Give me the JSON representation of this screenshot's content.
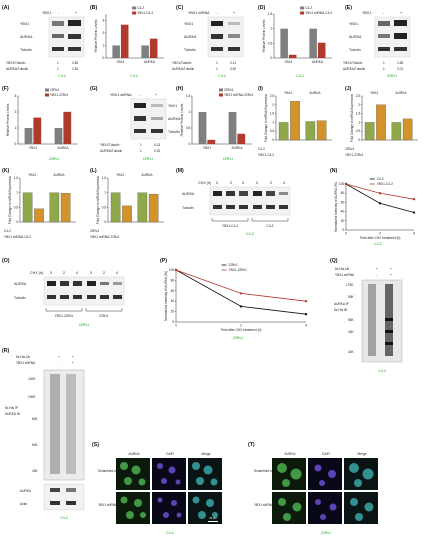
{
  "panels": {
    "A": {
      "letter": "(A)",
      "cond": [
        "YBX1",
        "-",
        "+"
      ],
      "rows": [
        "YBX1",
        "AURKA",
        "Tubulin"
      ],
      "quant": [
        [
          "YBX1/Tubulin",
          "1",
          "2.65"
        ],
        [
          "AURKA/Tubulin",
          "1",
          "1.54"
        ]
      ],
      "cell": "C4-2"
    },
    "B": {
      "letter": "(B)",
      "cell": "C4-2"
    },
    "C": {
      "letter": "(C)",
      "cond": [
        "YBX1 shRNA",
        "-",
        "+"
      ],
      "rows": [
        "YBX1",
        "AURKA",
        "Tubulin"
      ],
      "quant": [
        [
          "YBX1/Tubulin",
          "1",
          "0.11"
        ],
        [
          "AURKA/Tubulin",
          "1",
          "0.52"
        ]
      ],
      "cell": "C4-2"
    },
    "D": {
      "letter": "(D)",
      "cell": "C4-2"
    },
    "E": {
      "letter": "(E)",
      "cond": [
        "YBX1",
        "-",
        "+"
      ],
      "rows": [
        "YBX1",
        "AURKA",
        "Tubulin"
      ],
      "quant": [
        [
          "YBX1/Tubulin",
          "1",
          "1.65"
        ],
        [
          "AURKA/Tubulin",
          "1",
          "2.01"
        ]
      ],
      "cell": "22Rv1"
    },
    "F": {
      "letter": "(F)",
      "cell": "22Rv1"
    },
    "G": {
      "letter": "(G)",
      "cond": [
        "YBX1 shRNA",
        "-",
        "+"
      ],
      "rows": [
        "YBX1",
        "AURKA",
        "Tubulin"
      ],
      "quant": [
        [
          "YBX1/Tubulin",
          "1",
          "0.13"
        ],
        [
          "AURKA/Tubulin",
          "1",
          "0.32"
        ]
      ],
      "cell": "22Rv1"
    },
    "H": {
      "letter": "(H)",
      "cell": "22Rv1"
    },
    "I": {
      "letter": "(I)",
      "labels": [
        "C4-2",
        "YBX1-C4-2"
      ]
    },
    "J": {
      "letter": "(J)",
      "labels": [
        "22Rv1",
        "YBX1-22Rv1"
      ]
    },
    "K": {
      "letter": "(K)",
      "labels": [
        "C4-2",
        "YBX1 shRNA-C4-2"
      ]
    },
    "L": {
      "letter": "(L)",
      "labels": [
        "22Rv1",
        "YBX1 shRNA-22Rv1"
      ]
    },
    "M": {
      "letter": "(M)",
      "chx": "CHX (h)",
      "times": [
        "0",
        "2",
        "4",
        "0",
        "2",
        "4"
      ],
      "rows": [
        "AURKA",
        "Tubulin"
      ],
      "groups": [
        "YBX1-C4-2",
        "C4-2"
      ],
      "cell": "C4-2"
    },
    "N": {
      "letter": "(N)",
      "cell": "C4-2"
    },
    "O": {
      "letter": "(O)",
      "chx": "CHX (h)",
      "times": [
        "0",
        "2",
        "4",
        "0",
        "2",
        "4"
      ],
      "rows": [
        "AURKA",
        "Tubulin"
      ],
      "groups": [
        "YBX1-22Rv1",
        "22Rv1"
      ],
      "cell": "22Rv1"
    },
    "P": {
      "letter": "(P)",
      "cell": "22Rv1"
    },
    "Q": {
      "letter": "(Q)",
      "top": [
        "6x-His-Ub",
        "YBX1 shRNA"
      ],
      "signs": [
        [
          "+",
          "+"
        ],
        [
          "-",
          "+"
        ]
      ],
      "side": [
        "AURKA IP",
        "6x-His IB"
      ],
      "kda": [
        "175K",
        "95K",
        "55K",
        "43K",
        "34K"
      ],
      "cell": "C4-2"
    },
    "R": {
      "letter": "(R)",
      "top": [
        "6x-His-Ub",
        "YBX1 shRNA"
      ],
      "signs": [
        [
          "+",
          "+"
        ],
        [
          "-",
          "+"
        ]
      ],
      "side": [
        "6x-His IP",
        "AURKA IB"
      ],
      "kda": [
        "120K",
        "100K",
        "80K",
        "60K",
        "40K"
      ],
      "rows": [
        "AURKA",
        "Actin"
      ],
      "cell": "C4-2"
    },
    "S": {
      "letter": "(S)",
      "cols": [
        "AURKA",
        "DAPI",
        "Merge"
      ],
      "rows": [
        "Scrambled shRNA",
        "YBX1 shRNA"
      ],
      "scale": "20 μm",
      "cell": "C4-2"
    },
    "T": {
      "letter": "(T)",
      "cols": [
        "AURKA",
        "DAPI",
        "Merge"
      ],
      "rows": [
        "Scrambled shRNA",
        "YBX1 shRNA"
      ],
      "cell": "22Rv1"
    }
  },
  "chart_data": [
    {
      "panel": "B",
      "type": "bar",
      "categories": [
        "YBX1",
        "AURKA"
      ],
      "ylabel": "Relative Protein Levels",
      "ylim": [
        0,
        3.5
      ],
      "series": [
        {
          "name": "C4-2",
          "values": [
            1,
            1
          ]
        },
        {
          "name": "YBX1-C4-2",
          "values": [
            2.65,
            1.54
          ]
        }
      ]
    },
    {
      "panel": "D",
      "type": "bar",
      "categories": [
        "YBX1",
        "AURKA"
      ],
      "ylabel": "Relative Protein Levels",
      "ylim": [
        0,
        1.5
      ],
      "series": [
        {
          "name": "C4-2",
          "values": [
            1,
            1
          ]
        },
        {
          "name": "YBX1 shRNA-C4-2",
          "values": [
            0.11,
            0.52
          ]
        }
      ]
    },
    {
      "panel": "F",
      "type": "bar",
      "categories": [
        "YBX1",
        "AURKA"
      ],
      "ylabel": "Relative Protein Levels",
      "ylim": [
        0,
        3
      ],
      "series": [
        {
          "name": "22Rv1",
          "values": [
            1,
            1
          ]
        },
        {
          "name": "YBX1-22Rv1",
          "values": [
            1.65,
            2.01
          ]
        }
      ]
    },
    {
      "panel": "H",
      "type": "bar",
      "categories": [
        "YBX1",
        "AURKA"
      ],
      "ylabel": "Relative Protein Levels",
      "ylim": [
        0,
        1.5
      ],
      "series": [
        {
          "name": "22Rv1",
          "values": [
            1,
            1
          ]
        },
        {
          "name": "YBX1 shRNA-22Rv1",
          "values": [
            0.13,
            0.32
          ]
        }
      ]
    },
    {
      "panel": "I",
      "type": "bar",
      "ylabel": "Fold Change in mRNA Expression",
      "ylim": [
        0,
        2.5
      ],
      "groups": [
        "YBX1",
        "AURKA"
      ],
      "values": [
        1.0,
        2.2,
        1.05,
        1.1
      ]
    },
    {
      "panel": "J",
      "type": "bar",
      "ylabel": "Fold Change in mRNA Expression",
      "ylim": [
        0,
        2.5
      ],
      "groups": [
        "YBX1",
        "AURKA"
      ],
      "values": [
        1.0,
        2.0,
        1.0,
        1.2
      ]
    },
    {
      "panel": "K",
      "type": "bar",
      "ylabel": "Fold Change in mRNA Expression",
      "ylim": [
        0,
        1.5
      ],
      "groups": [
        "YBX1",
        "AURKA"
      ],
      "values": [
        1.0,
        0.45,
        1.0,
        0.98
      ]
    },
    {
      "panel": "L",
      "type": "bar",
      "ylabel": "Fold Change in mRNA Expression",
      "ylim": [
        0,
        1.5
      ],
      "groups": [
        "YBX1",
        "AURKA"
      ],
      "values": [
        1.0,
        0.55,
        1.0,
        0.95
      ]
    },
    {
      "panel": "N",
      "type": "line",
      "xlabel": "Time after CHX treatment (h)",
      "ylabel": "Normalized Intensity of AURKA (%)",
      "x": [
        0,
        2,
        4
      ],
      "ylim": [
        0,
        100
      ],
      "series": [
        {
          "name": "C4-2",
          "values": [
            100,
            58,
            38
          ]
        },
        {
          "name": "YBX1-C4-2",
          "values": [
            100,
            80,
            67
          ]
        }
      ]
    },
    {
      "panel": "P",
      "type": "line",
      "xlabel": "Time after CHX treatment (h)",
      "ylabel": "Normalized Intensity of AURKA (%)",
      "x": [
        0,
        2,
        4
      ],
      "ylim": [
        0,
        100
      ],
      "series": [
        {
          "name": "22Rv1",
          "values": [
            100,
            30,
            15
          ]
        },
        {
          "name": "YBX1-22Rv1",
          "values": [
            100,
            55,
            40
          ]
        }
      ]
    }
  ]
}
